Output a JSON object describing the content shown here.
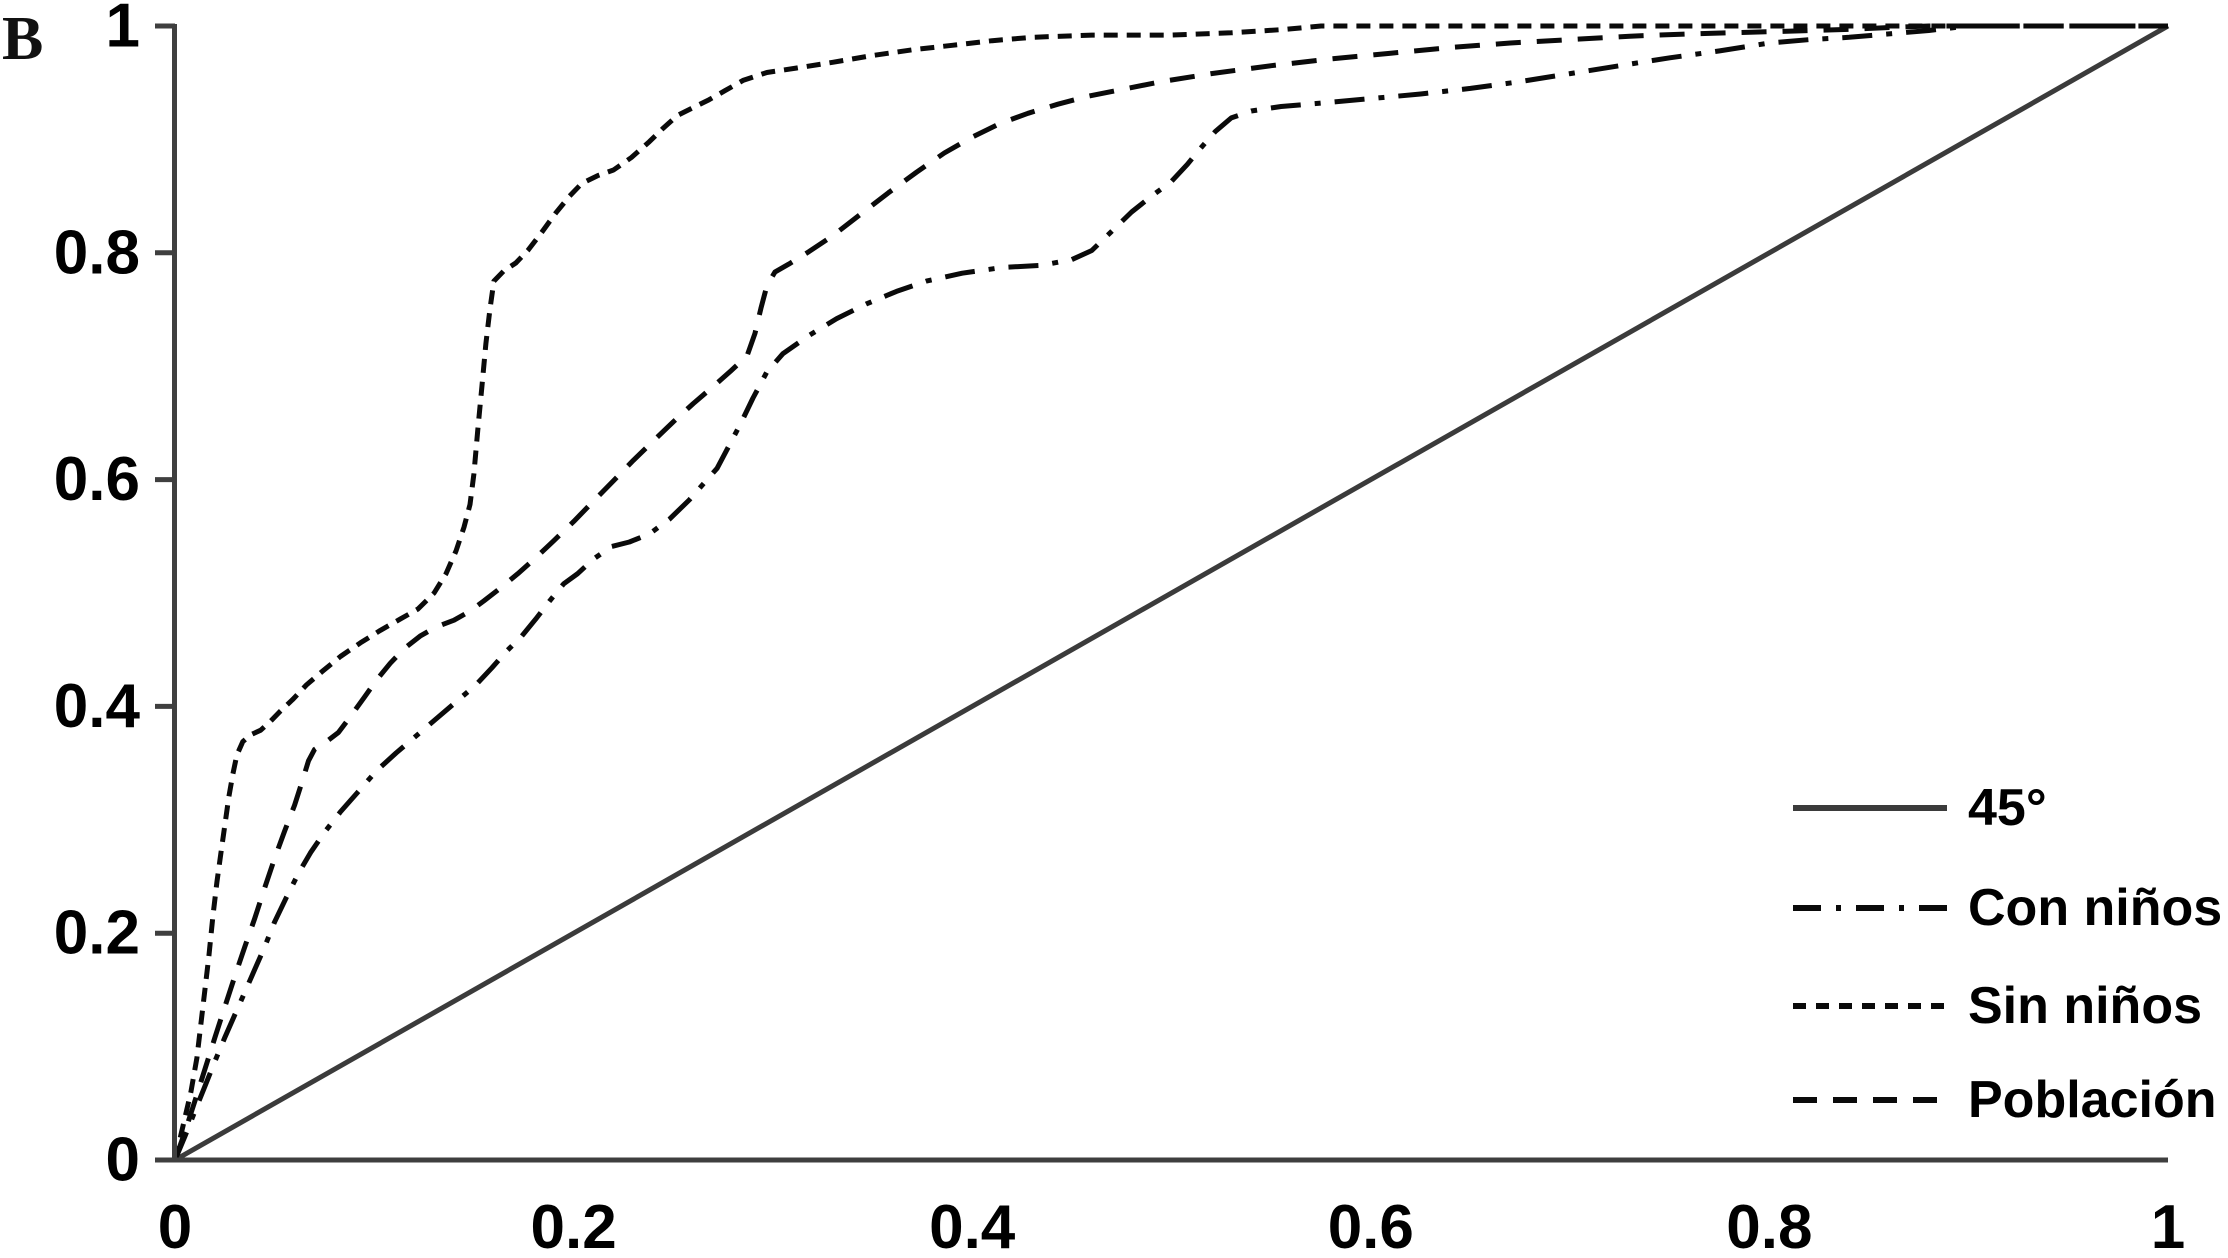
{
  "panel_label": "B",
  "colors": {
    "background": "#ffffff",
    "axis": "#3f3f3f",
    "curve": "#0a0a0a",
    "line45": "#3b3b3b",
    "text": "#000000"
  },
  "axes": {
    "x": {
      "tick_labels": [
        "0",
        "0.2",
        "0.4",
        "0.6",
        "0.8",
        "1"
      ],
      "tick_values": [
        0,
        0.2,
        0.4,
        0.6,
        0.8,
        1
      ]
    },
    "y": {
      "tick_labels": [
        "0",
        "0.2",
        "0.4",
        "0.6",
        "0.8",
        "1"
      ],
      "tick_values": [
        0,
        0.2,
        0.4,
        0.6,
        0.8,
        1
      ]
    }
  },
  "legend": {
    "items": [
      {
        "label": "45°",
        "style": "solid",
        "color": "#3b3b3b"
      },
      {
        "label": "Con niños",
        "style": "dashdot",
        "color": "#0a0a0a"
      },
      {
        "label": "Sin niños",
        "style": "dense-dash",
        "color": "#0a0a0a"
      },
      {
        "label": "Población",
        "style": "dash",
        "color": "#0a0a0a"
      }
    ]
  },
  "chart_data": {
    "type": "line",
    "title": "",
    "xlabel": "",
    "ylabel": "",
    "xlim": [
      0,
      1
    ],
    "ylim": [
      0,
      1
    ],
    "grid": false,
    "legend_position": "lower-right",
    "series": [
      {
        "name": "45°",
        "style": "solid",
        "color": "#3b3b3b",
        "width": 5,
        "points": [
          [
            0,
            0
          ],
          [
            1,
            1
          ]
        ]
      },
      {
        "name": "Con niños",
        "style": "dashdot",
        "color": "#0a0a0a",
        "width": 5,
        "points": [
          [
            0,
            0
          ],
          [
            0.005,
            0.021
          ],
          [
            0.01,
            0.043
          ],
          [
            0.015,
            0.065
          ],
          [
            0.02,
            0.087
          ],
          [
            0.025,
            0.108
          ],
          [
            0.03,
            0.128
          ],
          [
            0.035,
            0.148
          ],
          [
            0.04,
            0.168
          ],
          [
            0.045,
            0.188
          ],
          [
            0.05,
            0.21
          ],
          [
            0.056,
            0.232
          ],
          [
            0.062,
            0.253
          ],
          [
            0.068,
            0.271
          ],
          [
            0.075,
            0.289
          ],
          [
            0.083,
            0.307
          ],
          [
            0.092,
            0.325
          ],
          [
            0.101,
            0.343
          ],
          [
            0.111,
            0.359
          ],
          [
            0.121,
            0.374
          ],
          [
            0.131,
            0.389
          ],
          [
            0.141,
            0.404
          ],
          [
            0.151,
            0.419
          ],
          [
            0.159,
            0.434
          ],
          [
            0.166,
            0.448
          ],
          [
            0.174,
            0.462
          ],
          [
            0.181,
            0.477
          ],
          [
            0.188,
            0.493
          ],
          [
            0.195,
            0.508
          ],
          [
            0.202,
            0.517
          ],
          [
            0.21,
            0.53
          ],
          [
            0.219,
            0.541
          ],
          [
            0.228,
            0.545
          ],
          [
            0.238,
            0.552
          ],
          [
            0.248,
            0.565
          ],
          [
            0.258,
            0.582
          ],
          [
            0.266,
            0.598
          ],
          [
            0.272,
            0.61
          ],
          [
            0.278,
            0.63
          ],
          [
            0.284,
            0.65
          ],
          [
            0.29,
            0.672
          ],
          [
            0.297,
            0.695
          ],
          [
            0.305,
            0.711
          ],
          [
            0.318,
            0.727
          ],
          [
            0.332,
            0.742
          ],
          [
            0.347,
            0.755
          ],
          [
            0.362,
            0.766
          ],
          [
            0.377,
            0.775
          ],
          [
            0.395,
            0.782
          ],
          [
            0.415,
            0.787
          ],
          [
            0.435,
            0.789
          ],
          [
            0.45,
            0.794
          ],
          [
            0.46,
            0.802
          ],
          [
            0.47,
            0.819
          ],
          [
            0.48,
            0.836
          ],
          [
            0.49,
            0.85
          ],
          [
            0.5,
            0.863
          ],
          [
            0.508,
            0.878
          ],
          [
            0.515,
            0.893
          ],
          [
            0.522,
            0.907
          ],
          [
            0.53,
            0.919
          ],
          [
            0.54,
            0.925
          ],
          [
            0.555,
            0.929
          ],
          [
            0.575,
            0.932
          ],
          [
            0.6,
            0.936
          ],
          [
            0.625,
            0.94
          ],
          [
            0.65,
            0.945
          ],
          [
            0.675,
            0.951
          ],
          [
            0.7,
            0.958
          ],
          [
            0.725,
            0.965
          ],
          [
            0.75,
            0.972
          ],
          [
            0.775,
            0.978
          ],
          [
            0.8,
            0.985
          ],
          [
            0.82,
            0.988
          ],
          [
            0.84,
            0.99
          ],
          [
            0.86,
            0.993
          ],
          [
            0.88,
            0.996
          ],
          [
            0.9,
            1
          ],
          [
            1,
            1
          ]
        ]
      },
      {
        "name": "Sin niños",
        "style": "dense-dash",
        "color": "#0a0a0a",
        "width": 5,
        "points": [
          [
            0,
            0
          ],
          [
            0.004,
            0.03
          ],
          [
            0.008,
            0.06
          ],
          [
            0.011,
            0.09
          ],
          [
            0.013,
            0.12
          ],
          [
            0.015,
            0.15
          ],
          [
            0.017,
            0.18
          ],
          [
            0.019,
            0.215
          ],
          [
            0.021,
            0.245
          ],
          [
            0.023,
            0.27
          ],
          [
            0.025,
            0.295
          ],
          [
            0.027,
            0.32
          ],
          [
            0.029,
            0.34
          ],
          [
            0.031,
            0.357
          ],
          [
            0.034,
            0.369
          ],
          [
            0.038,
            0.375
          ],
          [
            0.043,
            0.379
          ],
          [
            0.048,
            0.387
          ],
          [
            0.053,
            0.396
          ],
          [
            0.059,
            0.406
          ],
          [
            0.066,
            0.419
          ],
          [
            0.074,
            0.431
          ],
          [
            0.083,
            0.444
          ],
          [
            0.093,
            0.456
          ],
          [
            0.103,
            0.467
          ],
          [
            0.113,
            0.477
          ],
          [
            0.122,
            0.486
          ],
          [
            0.13,
            0.5
          ],
          [
            0.136,
            0.517
          ],
          [
            0.141,
            0.537
          ],
          [
            0.145,
            0.558
          ],
          [
            0.148,
            0.578
          ],
          [
            0.15,
            0.605
          ],
          [
            0.152,
            0.645
          ],
          [
            0.154,
            0.682
          ],
          [
            0.156,
            0.72
          ],
          [
            0.158,
            0.75
          ],
          [
            0.16,
            0.775
          ],
          [
            0.165,
            0.784
          ],
          [
            0.171,
            0.791
          ],
          [
            0.177,
            0.802
          ],
          [
            0.184,
            0.818
          ],
          [
            0.191,
            0.835
          ],
          [
            0.198,
            0.85
          ],
          [
            0.204,
            0.861
          ],
          [
            0.212,
            0.868
          ],
          [
            0.22,
            0.873
          ],
          [
            0.229,
            0.884
          ],
          [
            0.238,
            0.898
          ],
          [
            0.245,
            0.91
          ],
          [
            0.252,
            0.921
          ],
          [
            0.26,
            0.928
          ],
          [
            0.268,
            0.935
          ],
          [
            0.276,
            0.943
          ],
          [
            0.285,
            0.952
          ],
          [
            0.297,
            0.959
          ],
          [
            0.312,
            0.963
          ],
          [
            0.33,
            0.968
          ],
          [
            0.35,
            0.974
          ],
          [
            0.37,
            0.979
          ],
          [
            0.39,
            0.983
          ],
          [
            0.41,
            0.987
          ],
          [
            0.43,
            0.99
          ],
          [
            0.46,
            0.992
          ],
          [
            0.5,
            0.992
          ],
          [
            0.53,
            0.994
          ],
          [
            0.557,
            0.997
          ],
          [
            0.575,
            1
          ],
          [
            1,
            1
          ]
        ]
      },
      {
        "name": "Población",
        "style": "dash",
        "color": "#0a0a0a",
        "width": 5,
        "points": [
          [
            0,
            0
          ],
          [
            0.005,
            0.025
          ],
          [
            0.01,
            0.052
          ],
          [
            0.015,
            0.08
          ],
          [
            0.02,
            0.108
          ],
          [
            0.025,
            0.135
          ],
          [
            0.03,
            0.162
          ],
          [
            0.035,
            0.188
          ],
          [
            0.04,
            0.213
          ],
          [
            0.045,
            0.24
          ],
          [
            0.05,
            0.266
          ],
          [
            0.055,
            0.29
          ],
          [
            0.06,
            0.313
          ],
          [
            0.064,
            0.335
          ],
          [
            0.067,
            0.352
          ],
          [
            0.07,
            0.362
          ],
          [
            0.076,
            0.369
          ],
          [
            0.082,
            0.377
          ],
          [
            0.088,
            0.391
          ],
          [
            0.095,
            0.408
          ],
          [
            0.101,
            0.423
          ],
          [
            0.108,
            0.438
          ],
          [
            0.115,
            0.451
          ],
          [
            0.123,
            0.462
          ],
          [
            0.131,
            0.47
          ],
          [
            0.14,
            0.476
          ],
          [
            0.148,
            0.484
          ],
          [
            0.155,
            0.493
          ],
          [
            0.163,
            0.504
          ],
          [
            0.172,
            0.517
          ],
          [
            0.181,
            0.531
          ],
          [
            0.19,
            0.546
          ],
          [
            0.2,
            0.563
          ],
          [
            0.21,
            0.581
          ],
          [
            0.22,
            0.599
          ],
          [
            0.23,
            0.617
          ],
          [
            0.24,
            0.634
          ],
          [
            0.25,
            0.651
          ],
          [
            0.26,
            0.667
          ],
          [
            0.27,
            0.682
          ],
          [
            0.279,
            0.696
          ],
          [
            0.287,
            0.709
          ],
          [
            0.291,
            0.729
          ],
          [
            0.294,
            0.751
          ],
          [
            0.297,
            0.771
          ],
          [
            0.301,
            0.783
          ],
          [
            0.308,
            0.79
          ],
          [
            0.318,
            0.801
          ],
          [
            0.33,
            0.815
          ],
          [
            0.344,
            0.834
          ],
          [
            0.358,
            0.853
          ],
          [
            0.372,
            0.871
          ],
          [
            0.386,
            0.888
          ],
          [
            0.4,
            0.902
          ],
          [
            0.414,
            0.914
          ],
          [
            0.428,
            0.923
          ],
          [
            0.443,
            0.931
          ],
          [
            0.458,
            0.938
          ],
          [
            0.475,
            0.944
          ],
          [
            0.495,
            0.951
          ],
          [
            0.52,
            0.958
          ],
          [
            0.55,
            0.965
          ],
          [
            0.58,
            0.971
          ],
          [
            0.61,
            0.976
          ],
          [
            0.64,
            0.981
          ],
          [
            0.67,
            0.985
          ],
          [
            0.7,
            0.988
          ],
          [
            0.73,
            0.991
          ],
          [
            0.76,
            0.993
          ],
          [
            0.8,
            0.995
          ],
          [
            0.84,
            0.997
          ],
          [
            0.865,
            0.999
          ],
          [
            0.88,
            1
          ],
          [
            1,
            1
          ]
        ]
      }
    ]
  }
}
